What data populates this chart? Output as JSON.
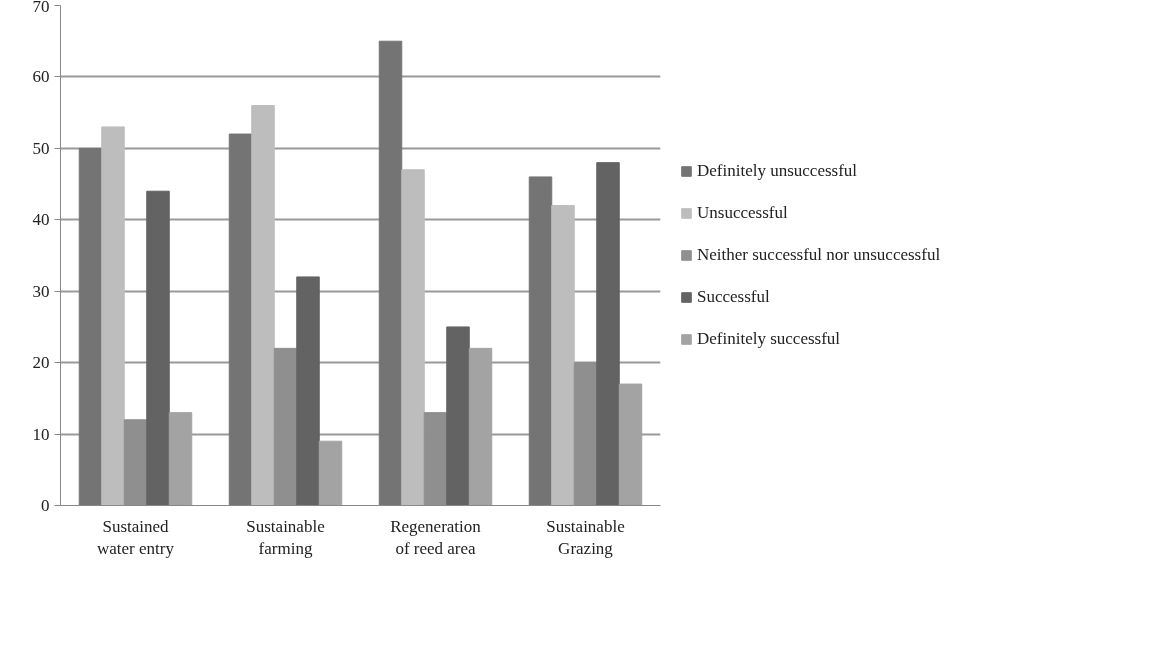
{
  "chart_data": {
    "type": "bar",
    "categories": [
      "Sustained water entry",
      "Sustainable farming",
      "Regeneration of reed area",
      "Sustainable Grazing"
    ],
    "series": [
      {
        "name": "Definitely unsuccessful",
        "color": "#747474",
        "values": [
          50,
          52,
          65,
          46
        ]
      },
      {
        "name": "Unsuccessful",
        "color": "#bdbdbd",
        "values": [
          53,
          56,
          47,
          42
        ]
      },
      {
        "name": "Neither successful nor unsuccessful",
        "color": "#8f8f8f",
        "values": [
          12,
          22,
          13,
          20
        ]
      },
      {
        "name": "Successful",
        "color": "#636363",
        "values": [
          44,
          32,
          25,
          48
        ]
      },
      {
        "name": "Definitely successful",
        "color": "#a3a3a3",
        "values": [
          13,
          9,
          22,
          17
        ]
      }
    ],
    "ylim": [
      0,
      70
    ],
    "yticks": [
      0,
      10,
      20,
      30,
      40,
      50,
      60,
      70
    ],
    "grid": "y",
    "legend": "right"
  }
}
